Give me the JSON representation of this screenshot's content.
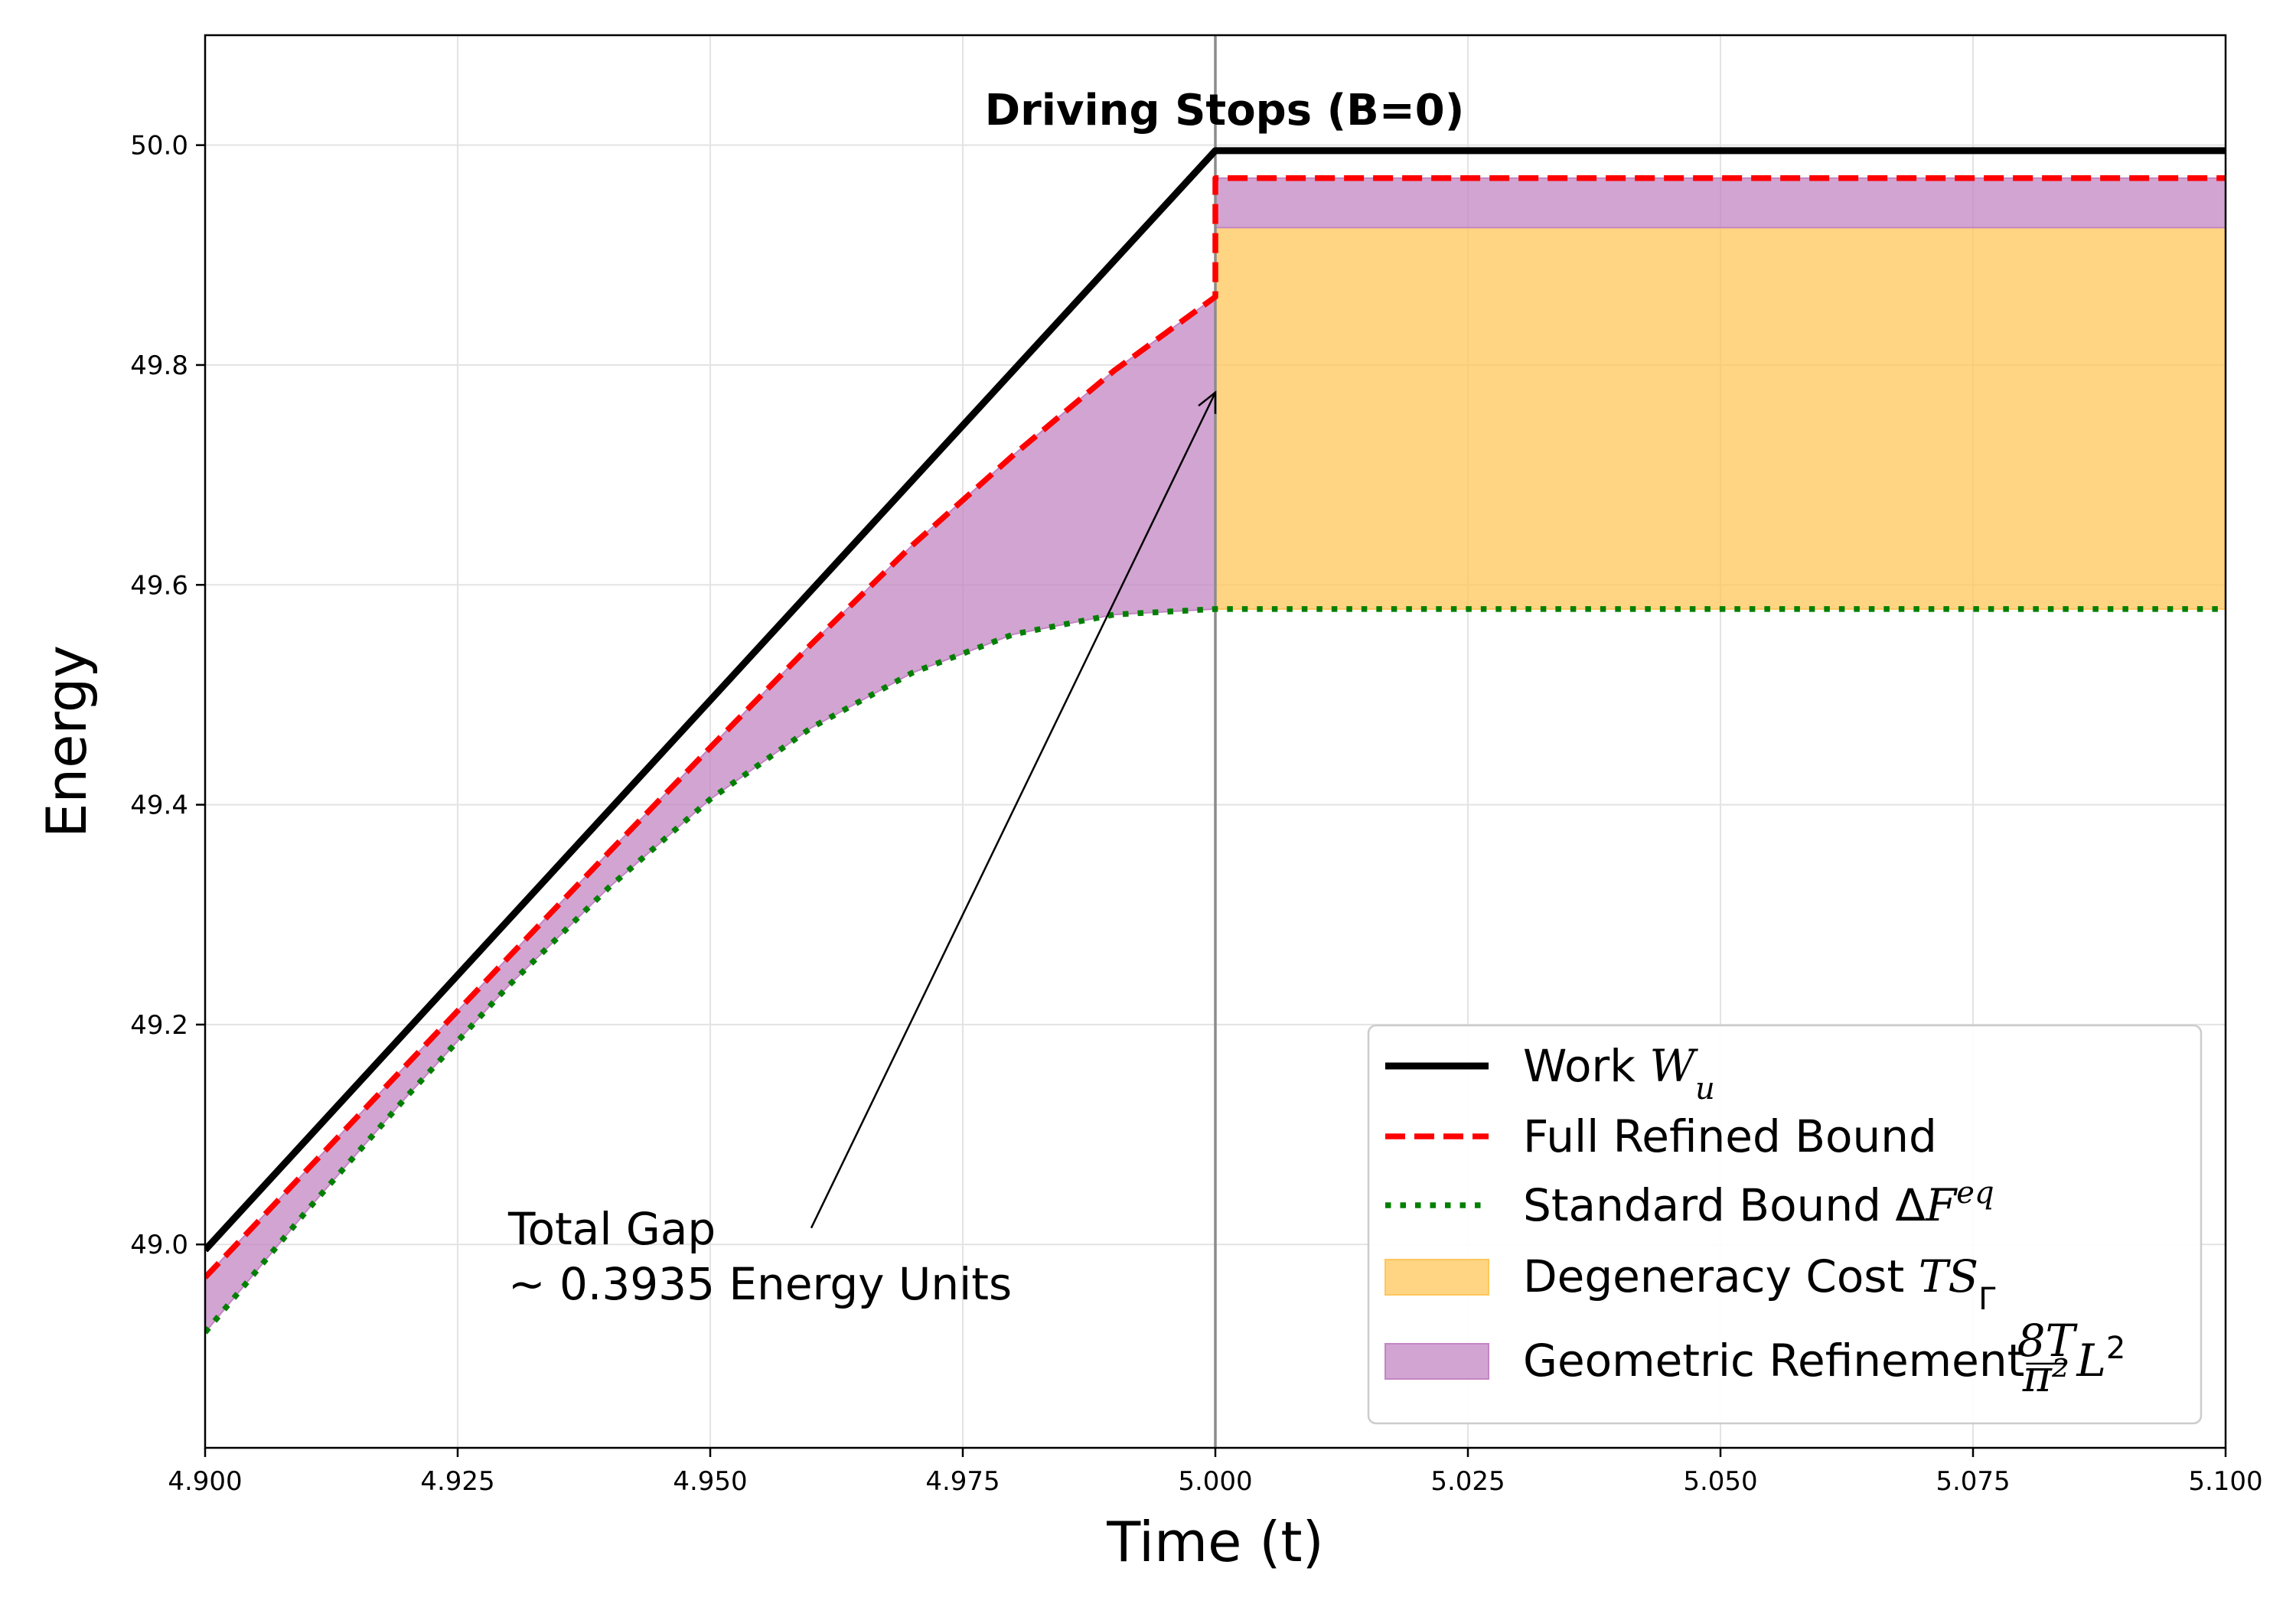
{
  "chart_data": {
    "type": "line",
    "title": "Driving Stops (B=0)",
    "xlabel": "Time (t)",
    "ylabel": "Energy",
    "xlim": [
      4.9,
      5.1
    ],
    "ylim": [
      48.815,
      50.1
    ],
    "xticks": [
      4.9,
      4.925,
      4.95,
      4.975,
      5.0,
      5.025,
      5.05,
      5.075,
      5.1
    ],
    "xtick_labels": [
      "4.900",
      "4.925",
      "4.950",
      "4.975",
      "5.000",
      "5.025",
      "5.050",
      "5.075",
      "5.100"
    ],
    "yticks": [
      49.0,
      49.2,
      49.4,
      49.6,
      49.8,
      50.0
    ],
    "ytick_labels": [
      "49.0",
      "49.2",
      "49.4",
      "49.6",
      "49.8",
      "50.0"
    ],
    "grid": true,
    "legend_position": "lower-right",
    "vline_x": 5.0,
    "series": [
      {
        "name": "Work W_u",
        "legend_text": "Work ",
        "legend_math": "W",
        "legend_sub": "u",
        "style": "solid",
        "color": "#000000",
        "x": [
          4.9,
          5.0,
          5.1
        ],
        "y": [
          48.995,
          49.995,
          49.995
        ]
      },
      {
        "name": "Full Refined Bound",
        "legend_text": "Full Refined Bound",
        "style": "dashed",
        "color": "#ff0000",
        "x": [
          4.9,
          4.91,
          4.92,
          4.93,
          4.94,
          4.95,
          4.96,
          4.97,
          4.98,
          4.99,
          5.0,
          5.0,
          5.1
        ],
        "y": [
          48.97,
          49.067,
          49.164,
          49.261,
          49.357,
          49.452,
          49.546,
          49.636,
          49.718,
          49.795,
          49.862,
          49.97,
          49.97
        ]
      },
      {
        "name": "Standard Bound ΔF^eq",
        "legend_text": "Standard Bound Δ",
        "legend_math": "F",
        "legend_sup": "eq",
        "style": "dotted",
        "color": "#007f00",
        "x": [
          4.9,
          4.91,
          4.92,
          4.93,
          4.94,
          4.95,
          4.96,
          4.97,
          4.98,
          4.99,
          5.0,
          5.1
        ],
        "y": [
          48.92,
          49.03,
          49.135,
          49.235,
          49.325,
          49.405,
          49.47,
          49.52,
          49.555,
          49.573,
          49.578,
          49.578
        ]
      }
    ],
    "fills": [
      {
        "name": "Degeneracy Cost TS_Γ",
        "legend_text": "Degeneracy Cost ",
        "legend_math": "TS",
        "legend_sub": "Γ",
        "color": "#ffc65a",
        "x": [
          5.0,
          5.1
        ],
        "y_lower": [
          49.578,
          49.578
        ],
        "y_upper": [
          49.925,
          49.925
        ]
      },
      {
        "name": "Geometric Refinement (8T/π²)L²",
        "legend_text": "Geometric Refinement ",
        "legend_frac_num": "8T",
        "legend_frac_den": "π²",
        "legend_math": "L",
        "legend_sup": "2",
        "color": "#c386c3",
        "regions": [
          {
            "x": [
              4.9,
              4.91,
              4.92,
              4.93,
              4.94,
              4.95,
              4.96,
              4.97,
              4.98,
              4.99,
              5.0
            ],
            "y_lower": [
              48.92,
              49.03,
              49.135,
              49.235,
              49.325,
              49.405,
              49.47,
              49.52,
              49.555,
              49.573,
              49.578
            ],
            "y_upper": [
              48.97,
              49.067,
              49.164,
              49.261,
              49.357,
              49.452,
              49.546,
              49.636,
              49.718,
              49.795,
              49.862
            ]
          },
          {
            "x": [
              5.0,
              5.1
            ],
            "y_lower": [
              49.925,
              49.925
            ],
            "y_upper": [
              49.97,
              49.97
            ]
          }
        ]
      }
    ],
    "annotations": [
      {
        "line1": "Total Gap",
        "line2": "~ 0.3935 Energy Units",
        "text_x": 4.93,
        "text_y": 48.95,
        "arrow_from": [
          4.96,
          49.015
        ],
        "arrow_to": [
          5.0,
          49.775
        ]
      }
    ]
  }
}
